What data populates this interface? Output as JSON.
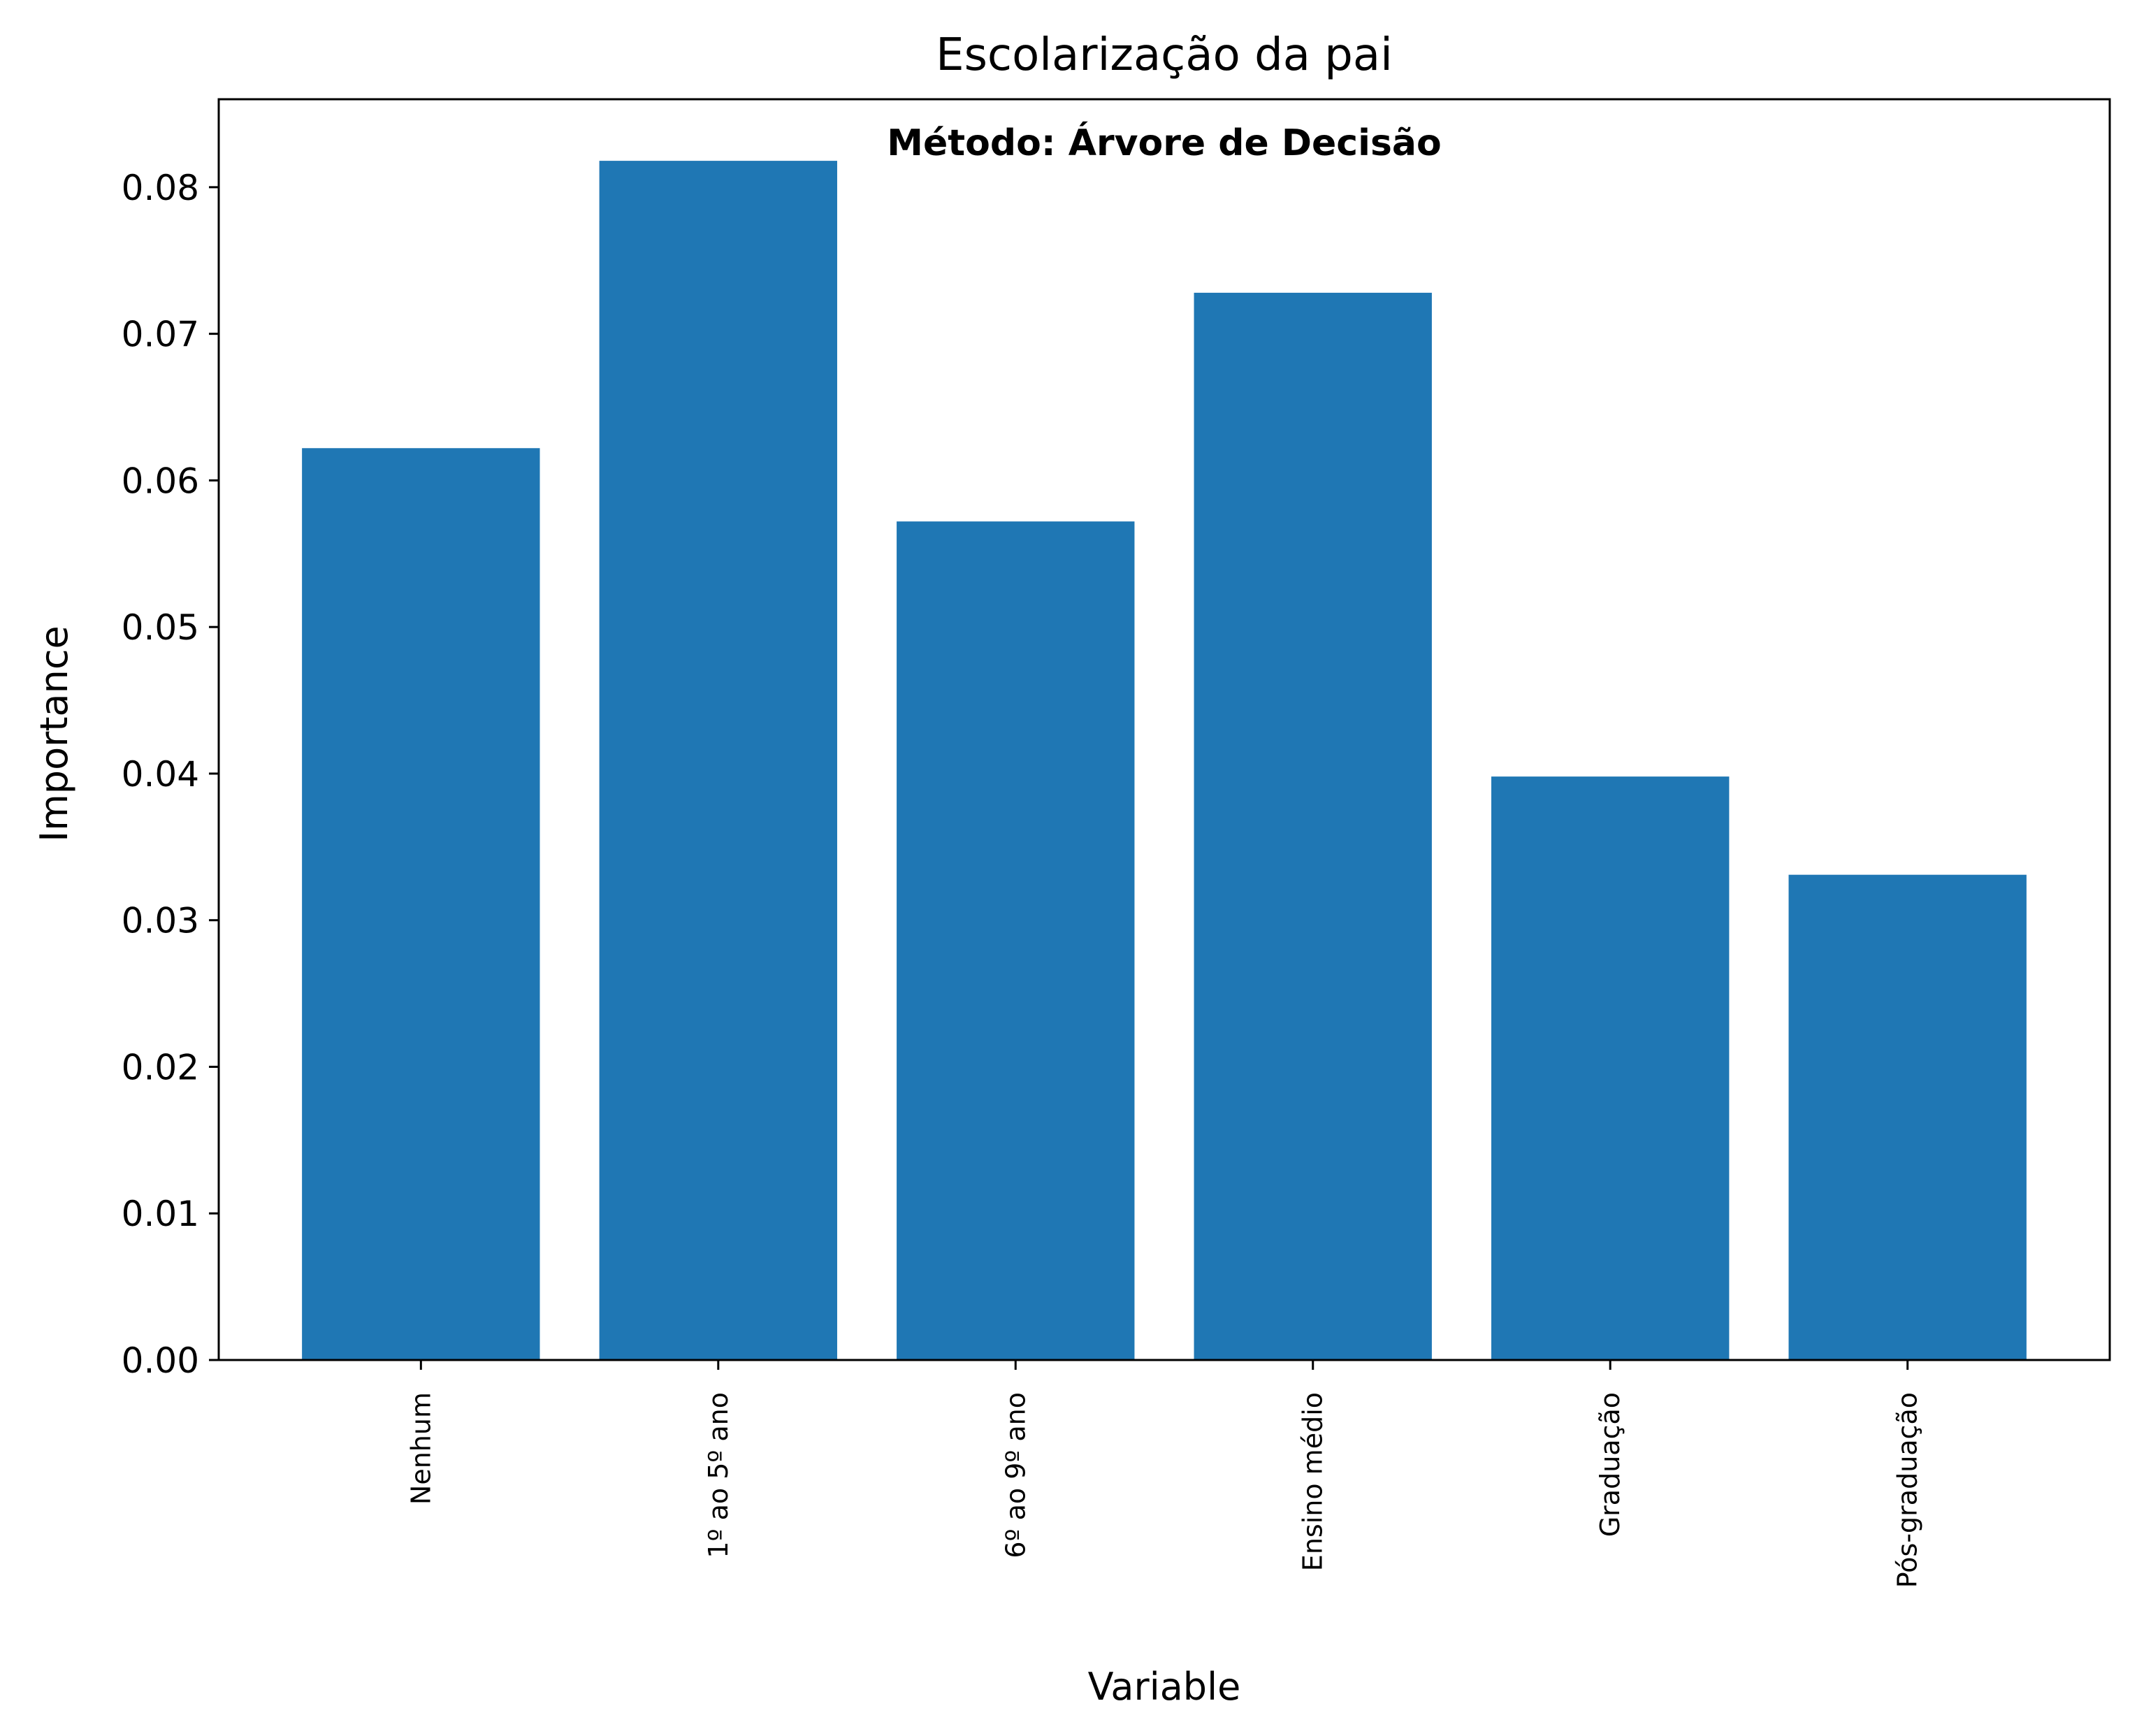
{
  "chart_data": {
    "type": "bar",
    "title": "Escolarização da pai",
    "subtitle": "Método: Árvore de Decisão",
    "xlabel": "Variable",
    "ylabel": "Importance",
    "categories": [
      "Nenhum",
      "1º ao 5º ano",
      "6º ao 9º ano",
      "Ensino médio",
      "Graduação",
      "Pós-graduação"
    ],
    "values": [
      0.0622,
      0.0818,
      0.0572,
      0.0728,
      0.0398,
      0.0331
    ],
    "ylim": [
      0,
      0.086
    ],
    "yticks": [
      0.0,
      0.01,
      0.02,
      0.03,
      0.04,
      0.05,
      0.06,
      0.07,
      0.08
    ],
    "ytick_labels": [
      "0.00",
      "0.01",
      "0.02",
      "0.03",
      "0.04",
      "0.05",
      "0.06",
      "0.07",
      "0.08"
    ],
    "bar_color": "#1f77b4",
    "grid": false
  }
}
